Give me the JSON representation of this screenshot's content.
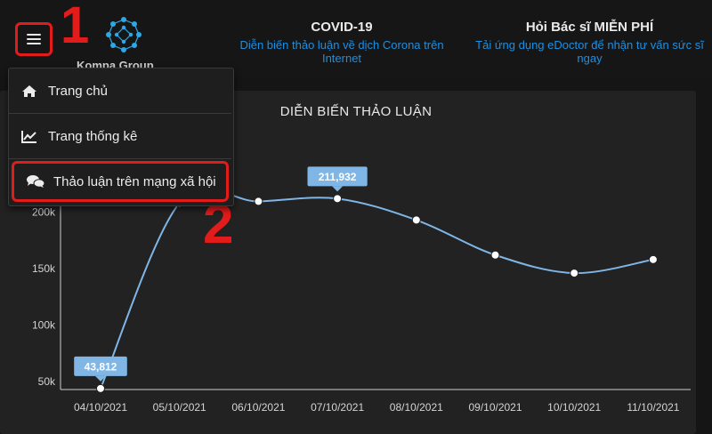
{
  "header": {
    "brand": "Kompa Group",
    "news": [
      {
        "title": "COVID-19",
        "subtitle": "Diễn biến thảo luận về dịch Corona trên Internet"
      },
      {
        "title": "Hỏi Bác sĩ MIỄN PHÍ",
        "subtitle": "Tải ứng dụng eDoctor để nhận tư vấn sức sĩ ngay"
      }
    ]
  },
  "annotations": {
    "step1": "1",
    "step2": "2"
  },
  "menu": {
    "items": [
      {
        "label": "Trang chủ",
        "icon": "home-icon"
      },
      {
        "label": "Trang thống kê",
        "icon": "line-chart-icon"
      },
      {
        "label": "Thảo luận trên mạng xã hội",
        "icon": "comments-icon"
      }
    ]
  },
  "colors": {
    "accent": "#1d8fe1",
    "highlight": "#e21b1b",
    "line": "#7fb6e6"
  },
  "chart_data": {
    "type": "line",
    "title": "DIỄN BIẾN THẢO LUẬN",
    "categories": [
      "04/10/2021",
      "05/10/2021",
      "06/10/2021",
      "07/10/2021",
      "08/10/2021",
      "09/10/2021",
      "10/10/2021",
      "11/10/2021"
    ],
    "values": [
      43812,
      208000,
      209500,
      211932,
      193000,
      162000,
      146000,
      158000
    ],
    "ylim": [
      40000,
      230000
    ],
    "yticks": [
      50000,
      100000,
      150000,
      200000
    ],
    "ytick_labels": [
      "50k",
      "100k",
      "150k",
      "200k"
    ],
    "data_labels": [
      {
        "index": 0,
        "text": "43,812"
      },
      {
        "index": 3,
        "text": "211,932"
      }
    ],
    "grid": false
  }
}
